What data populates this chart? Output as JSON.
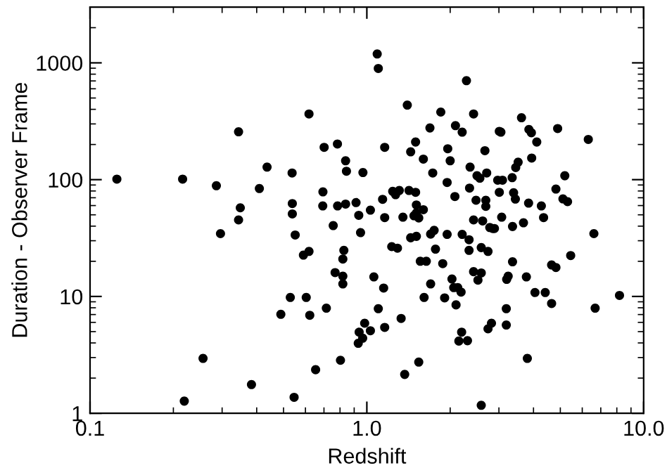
{
  "chart_data": {
    "type": "scatter",
    "xlabel": "Redshift",
    "ylabel": "Duration - Observer Frame",
    "log": "xy",
    "xlim": [
      0.1,
      10
    ],
    "ylim": [
      1,
      3000
    ],
    "xticks": [
      {
        "value": 0.1,
        "label": "0.1"
      },
      {
        "value": 1,
        "label": "1.0"
      },
      {
        "value": 10,
        "label": "10.0"
      }
    ],
    "yticks": [
      1,
      10,
      100,
      1000
    ],
    "grid": false,
    "marker": "circle",
    "color": "#000000",
    "x": [
      0.125,
      0.216,
      0.219,
      0.256,
      0.286,
      0.296,
      0.344,
      0.344,
      0.349,
      0.383,
      0.409,
      0.436,
      0.489,
      0.529,
      0.537,
      0.538,
      0.538,
      0.551,
      0.546,
      0.59,
      0.618,
      0.604,
      0.618,
      0.622,
      0.653,
      0.693,
      0.694,
      0.701,
      0.714,
      0.756,
      0.768,
      0.783,
      0.784,
      0.803,
      0.819,
      0.826,
      0.819,
      0.819,
      0.838,
      0.838,
      0.844,
      0.914,
      0.935,
      0.949,
      0.938,
      0.931,
      0.966,
      0.968,
      0.982,
      1.03,
      1.03,
      1.06,
      1.09,
      1.1,
      1.1,
      1.14,
      1.15,
      1.16,
      1.16,
      1.16,
      1.23,
      1.24,
      1.27,
      1.29,
      1.31,
      1.33,
      1.35,
      1.37,
      1.4,
      1.42,
      1.44,
      1.44,
      1.48,
      1.5,
      1.5,
      1.51,
      1.51,
      1.51,
      1.54,
      1.54,
      1.56,
      1.6,
      1.6,
      1.61,
      1.64,
      1.69,
      1.7,
      1.7,
      1.73,
      1.75,
      1.77,
      1.85,
      1.88,
      1.91,
      1.95,
      1.95,
      1.96,
      2.0,
      2.03,
      2.06,
      2.09,
      2.08,
      2.1,
      2.13,
      2.15,
      2.19,
      2.2,
      2.21,
      2.21,
      2.29,
      2.31,
      2.34,
      2.34,
      2.35,
      2.36,
      2.43,
      2.43,
      2.43,
      2.5,
      2.48,
      2.52,
      2.56,
      2.59,
      2.59,
      2.59,
      2.62,
      2.67,
      2.69,
      2.69,
      2.71,
      2.74,
      2.74,
      2.78,
      2.82,
      2.85,
      2.89,
      2.97,
      3.01,
      3.01,
      3.05,
      3.07,
      3.09,
      3.19,
      3.19,
      3.2,
      3.24,
      3.35,
      3.36,
      3.36,
      3.39,
      3.44,
      3.45,
      3.52,
      3.62,
      3.68,
      3.77,
      3.8,
      3.84,
      3.85,
      3.93,
      3.94,
      4.05,
      4.11,
      4.27,
      4.35,
      4.41,
      4.65,
      4.65,
      4.82,
      4.82,
      4.89,
      5.19,
      5.11,
      5.31,
      5.45,
      6.31,
      6.61,
      6.68,
      8.18
    ],
    "values": [
      101,
      101,
      1.27,
      2.95,
      88.7,
      34.5,
      257,
      45.2,
      57.4,
      1.76,
      83.9,
      128,
      7.03,
      9.8,
      114,
      62.4,
      50.9,
      33.6,
      1.37,
      22.6,
      24.3,
      9.8,
      365,
      6.9,
      2.36,
      59.6,
      78.6,
      189,
      7.94,
      40.4,
      16.0,
      202,
      59.6,
      2.84,
      20.9,
      24.8,
      14.9,
      12.8,
      145,
      61.8,
      118,
      63.6,
      49.5,
      35.2,
      4.95,
      3.97,
      4.39,
      115,
      5.9,
      54.8,
      5.09,
      14.7,
      1192,
      895,
      7.86,
      67.8,
      11.8,
      189,
      47.3,
      5.43,
      26.7,
      79.4,
      74.4,
      25.9,
      80.8,
      6.48,
      47.7,
      2.15,
      435,
      80.8,
      173,
      31.8,
      49.1,
      210,
      77.9,
      60.7,
      51.9,
      32.7,
      47.0,
      2.74,
      20.0,
      150,
      55.3,
      9.8,
      20.0,
      277,
      12.8,
      34.2,
      114,
      36.8,
      25.4,
      379,
      19.1,
      9.72,
      94.6,
      34.0,
      184,
      145,
      14.1,
      11.9,
      290,
      71.7,
      8.47,
      11.9,
      4.15,
      10.9,
      4.95,
      255,
      34.0,
      704,
      4.18,
      30.6,
      24.8,
      84.7,
      128,
      365,
      45.2,
      16.3,
      108,
      66.6,
      13.8,
      103,
      26.2,
      15.9,
      1.17,
      44.3,
      177,
      66.6,
      59,
      114,
      5.28,
      24.3,
      38.9,
      5.9,
      38.2,
      38.2,
      99,
      259,
      77.9,
      255,
      47.7,
      99,
      7.86,
      5.69,
      14.0,
      14.9,
      104,
      39.7,
      19.8,
      77.2,
      68.2,
      127,
      141,
      339,
      42.7,
      14.7,
      2.95,
      63,
      269,
      252,
      153,
      10.8,
      210,
      59.6,
      47.3,
      10.8,
      8.7,
      18.6,
      83.1,
      17.7,
      274,
      108,
      68.4,
      64.8,
      22.4,
      221,
      34.5,
      7.94,
      10.2
    ]
  }
}
